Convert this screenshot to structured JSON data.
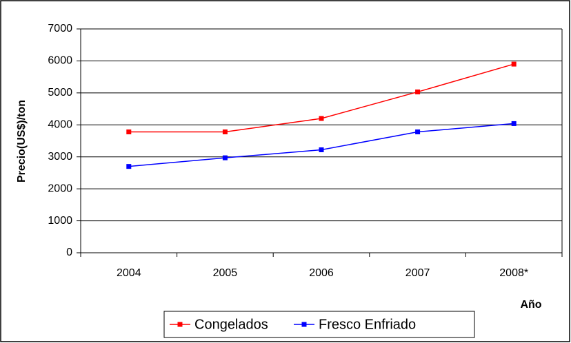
{
  "chart_data": {
    "type": "line",
    "y_label": "Precio(US$)/ton",
    "x_label": "Año",
    "categories": [
      "2004",
      "2005",
      "2006",
      "2007",
      "2008*"
    ],
    "series": [
      {
        "name": "Congelados",
        "color": "#ff0000",
        "values": [
          3780,
          3780,
          4200,
          5030,
          5900
        ]
      },
      {
        "name": "Fresco Enfriado",
        "color": "#0000ff",
        "values": [
          2700,
          2970,
          3220,
          3780,
          4040
        ]
      }
    ],
    "ylim": [
      0,
      7000
    ],
    "yticks": [
      0,
      1000,
      2000,
      3000,
      4000,
      5000,
      6000,
      7000
    ],
    "grid": true,
    "legend": "bottom"
  }
}
